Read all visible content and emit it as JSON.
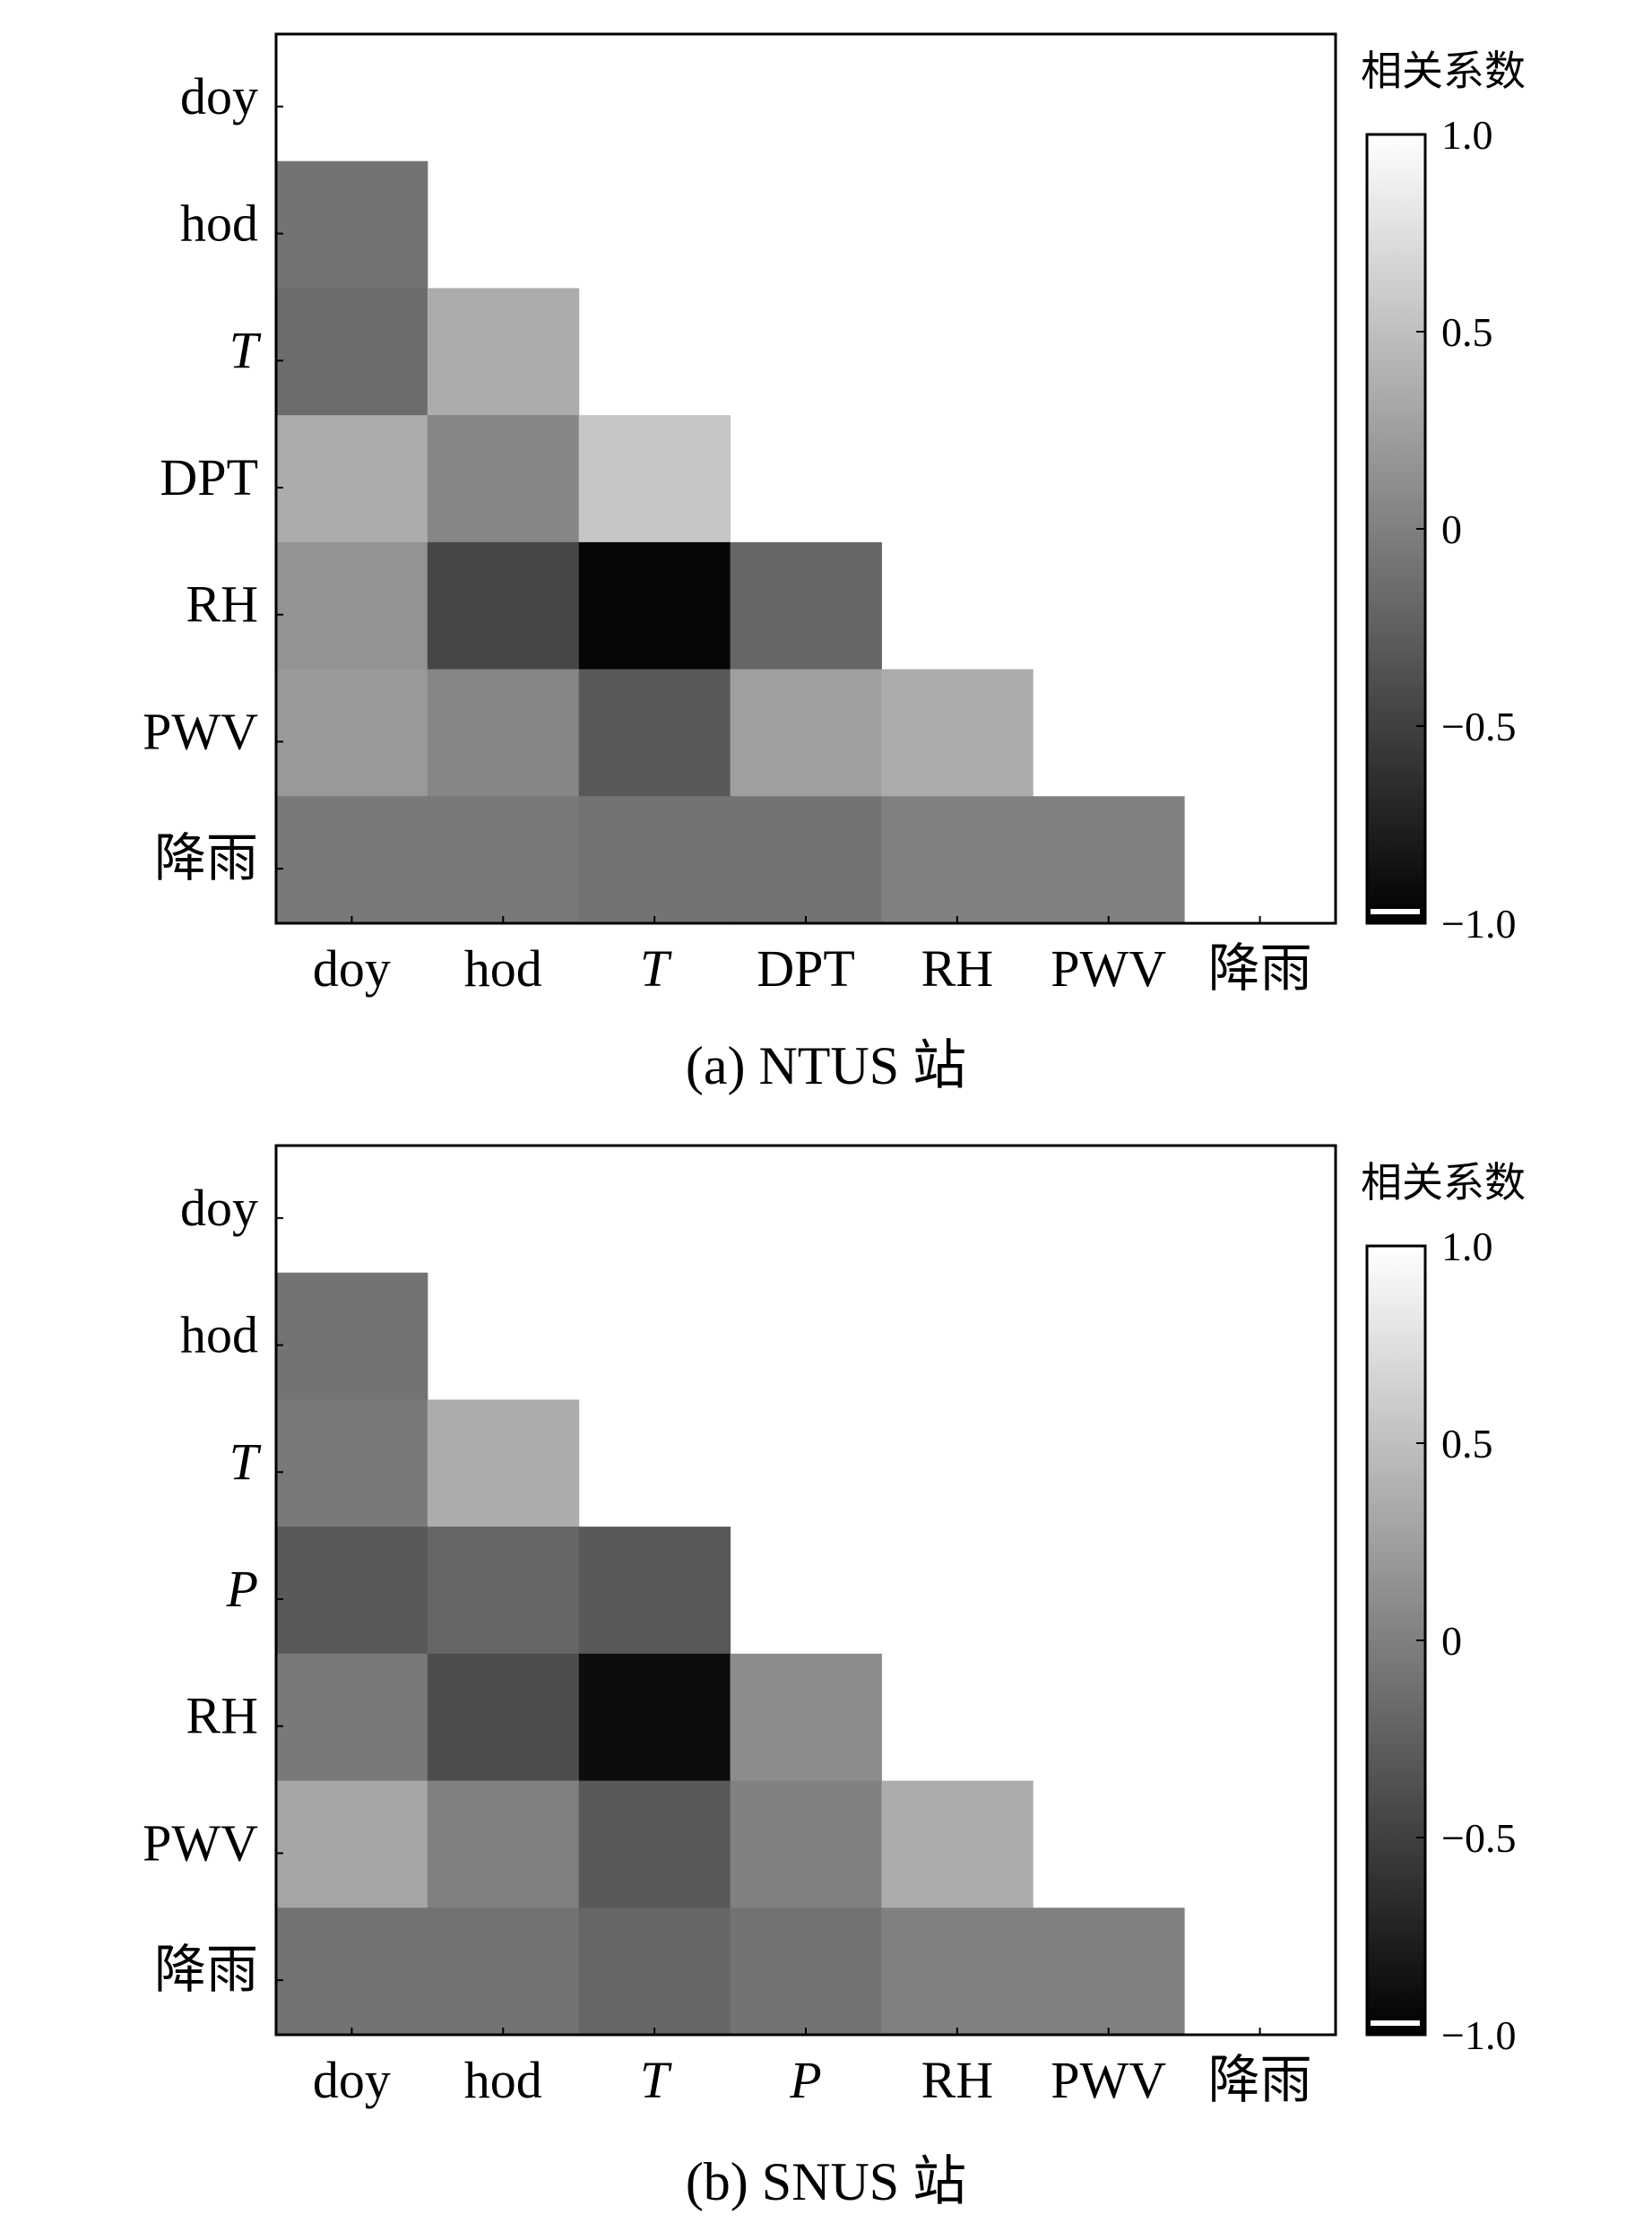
{
  "colorbar": {
    "title": "相关系数",
    "ticks": [
      "1.0",
      "0.5",
      "0",
      "−0.5",
      "−1.0"
    ],
    "tick_values": [
      1.0,
      0.5,
      0,
      -0.5,
      -1.0
    ],
    "range": [
      -1.0,
      1.0
    ],
    "color_low": "#000000",
    "color_high": "#ffffff"
  },
  "chart_data": [
    {
      "type": "heatmap",
      "caption": "(a) NTUS 站",
      "labels": [
        "doy",
        "hod",
        "T",
        "DPT",
        "RH",
        "PWV",
        "降雨"
      ],
      "italic_labels": [
        "T"
      ],
      "matrix": [
        [
          null,
          null,
          null,
          null,
          null,
          null,
          null
        ],
        [
          -0.1,
          null,
          null,
          null,
          null,
          null,
          null
        ],
        [
          -0.15,
          0.35,
          null,
          null,
          null,
          null,
          null
        ],
        [
          0.35,
          0.05,
          0.55,
          null,
          null,
          null,
          null
        ],
        [
          0.15,
          -0.45,
          -0.95,
          -0.2,
          null,
          null,
          null
        ],
        [
          0.2,
          0.05,
          -0.3,
          0.25,
          0.35,
          null,
          null
        ],
        [
          -0.05,
          -0.05,
          -0.1,
          -0.1,
          0.0,
          0.0,
          null
        ]
      ],
      "colorbar_title": "相关系数"
    },
    {
      "type": "heatmap",
      "caption": "(b) SNUS 站",
      "labels": [
        "doy",
        "hod",
        "T",
        "P",
        "RH",
        "PWV",
        "降雨"
      ],
      "italic_labels": [
        "T",
        "P"
      ],
      "matrix": [
        [
          null,
          null,
          null,
          null,
          null,
          null,
          null
        ],
        [
          -0.1,
          null,
          null,
          null,
          null,
          null,
          null
        ],
        [
          -0.05,
          0.35,
          null,
          null,
          null,
          null,
          null
        ],
        [
          -0.3,
          -0.2,
          -0.3,
          null,
          null,
          null,
          null
        ],
        [
          -0.05,
          -0.4,
          -0.9,
          0.1,
          null,
          null,
          null
        ],
        [
          0.3,
          0.0,
          -0.3,
          0.0,
          0.35,
          null,
          null
        ],
        [
          -0.1,
          -0.1,
          -0.2,
          -0.1,
          0.0,
          0.0,
          null
        ]
      ],
      "colorbar_title": "相关系数"
    }
  ]
}
